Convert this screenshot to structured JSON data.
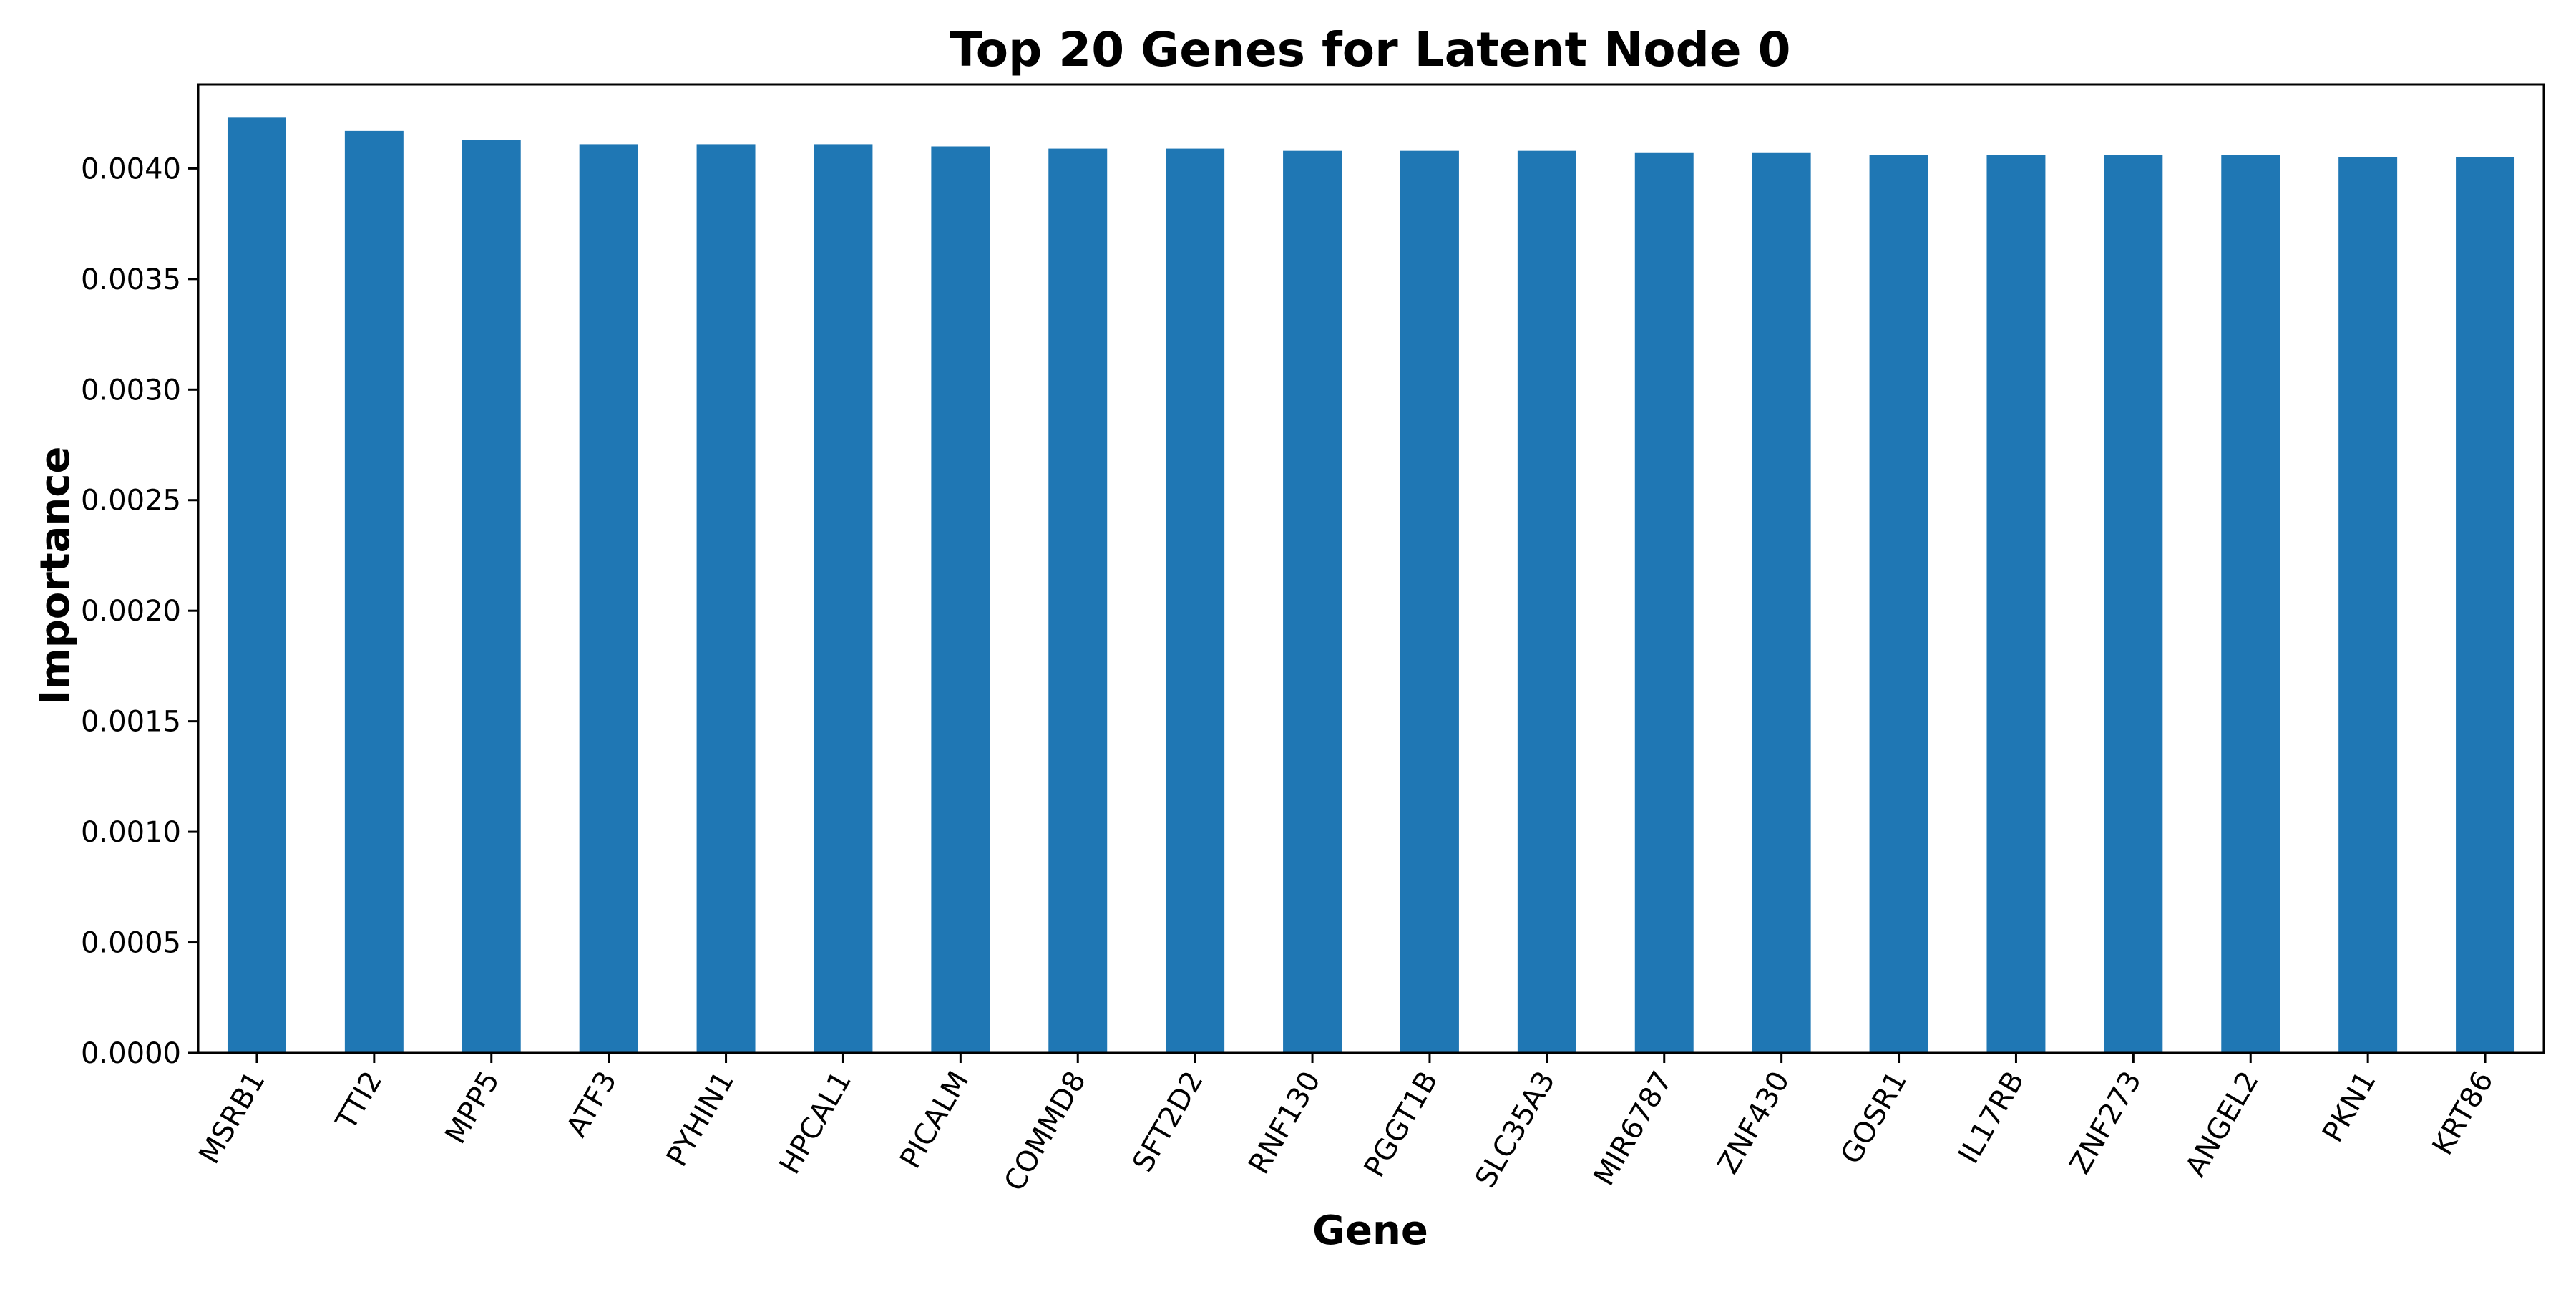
{
  "chart_data": {
    "type": "bar",
    "title": "Top 20 Genes for Latent Node 0",
    "xlabel": "Gene",
    "ylabel": "Importance",
    "categories": [
      "MSRB1",
      "TTI2",
      "MPP5",
      "ATF3",
      "PYHIN1",
      "HPCAL1",
      "PICALM",
      "COMMD8",
      "SFT2D2",
      "RNF130",
      "PGGT1B",
      "SLC35A3",
      "MIR6787",
      "ZNF430",
      "GOSR1",
      "IL17RB",
      "ZNF273",
      "ANGEL2",
      "PKN1",
      "KRT86"
    ],
    "values": [
      0.00423,
      0.00417,
      0.00413,
      0.00411,
      0.00411,
      0.00411,
      0.0041,
      0.00409,
      0.00409,
      0.00408,
      0.00408,
      0.00408,
      0.00407,
      0.00407,
      0.00406,
      0.00406,
      0.00406,
      0.00406,
      0.00405,
      0.00405
    ],
    "ylim": [
      0,
      0.00438
    ],
    "yticks": [
      "0.0000",
      "0.0005",
      "0.0010",
      "0.0015",
      "0.0020",
      "0.0025",
      "0.0030",
      "0.0035",
      "0.0040"
    ],
    "bar_color": "#1f77b4",
    "grid": false,
    "legend": "none"
  }
}
